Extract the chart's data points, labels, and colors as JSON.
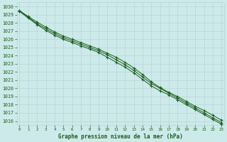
{
  "x": [
    0,
    1,
    2,
    3,
    4,
    5,
    6,
    7,
    8,
    9,
    10,
    11,
    12,
    13,
    14,
    15,
    16,
    17,
    18,
    19,
    20,
    21,
    22,
    23
  ],
  "line1": [
    1029.5,
    1028.8,
    1028.1,
    1027.5,
    1026.9,
    1026.4,
    1026.0,
    1025.6,
    1025.2,
    1024.8,
    1024.3,
    1023.8,
    1023.2,
    1022.5,
    1021.7,
    1020.8,
    1020.1,
    1019.5,
    1019.0,
    1018.4,
    1017.8,
    1017.3,
    1016.7,
    1016.1
  ],
  "line2": [
    1029.5,
    1028.7,
    1027.9,
    1027.3,
    1026.7,
    1026.2,
    1025.8,
    1025.4,
    1025.0,
    1024.6,
    1024.1,
    1023.5,
    1022.9,
    1022.2,
    1021.4,
    1020.6,
    1020.0,
    1019.4,
    1018.8,
    1018.2,
    1017.6,
    1017.0,
    1016.4,
    1015.8
  ],
  "line3": [
    1029.4,
    1028.6,
    1027.8,
    1027.1,
    1026.5,
    1026.0,
    1025.6,
    1025.2,
    1024.8,
    1024.4,
    1023.8,
    1023.2,
    1022.6,
    1021.9,
    1021.1,
    1020.3,
    1019.7,
    1019.2,
    1018.6,
    1018.0,
    1017.4,
    1016.8,
    1016.2,
    1015.6
  ],
  "bg_color": "#cdeaea",
  "grid_major_color": "#b8d4d4",
  "grid_minor_color": "#c8e0e0",
  "line_color": "#1a5c1a",
  "marker": "+",
  "xlabel": "Graphe pression niveau de la mer (hPa)",
  "ylim_min": 1015.5,
  "ylim_max": 1030.5,
  "xlim_min": -0.3,
  "xlim_max": 23.3,
  "xtick_labels": [
    "0",
    "1",
    "2",
    "3",
    "4",
    "5",
    "6",
    "7",
    "8",
    "9",
    "10",
    "11",
    "12",
    "13",
    "14",
    "15",
    "16",
    "17",
    "18",
    "19",
    "20",
    "21",
    "22",
    "23"
  ]
}
